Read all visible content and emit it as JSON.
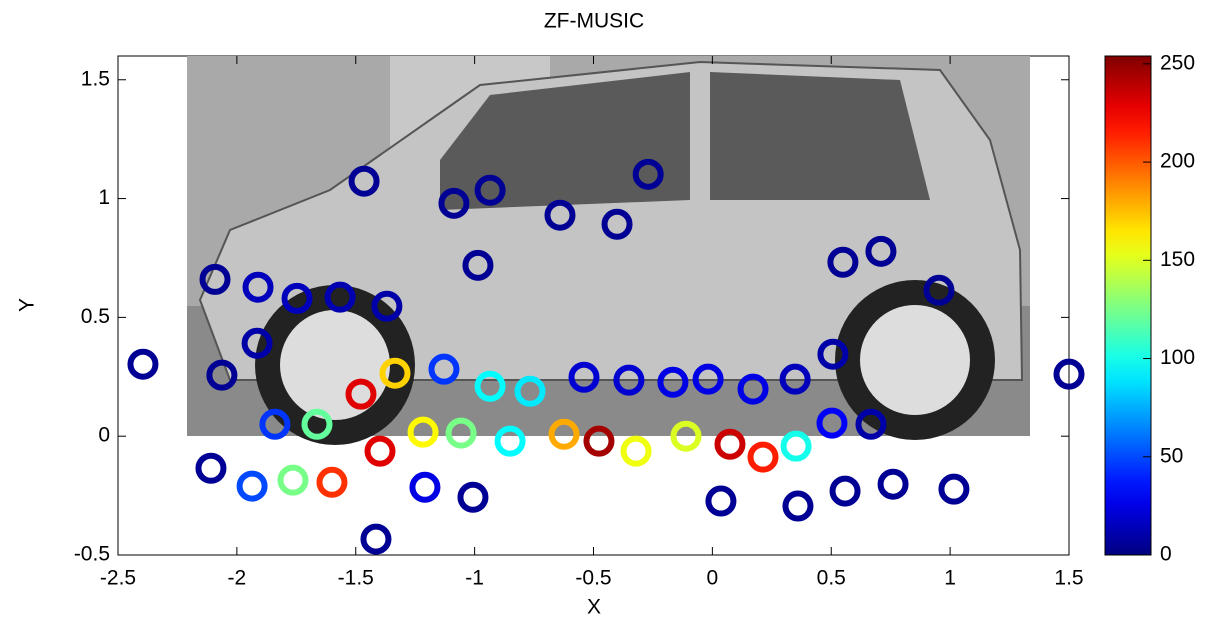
{
  "chart_data": {
    "type": "scatter",
    "title": "ZF-MUSIC",
    "x_label": "X",
    "y_label": "Y",
    "xlim": [
      -2.5,
      1.5
    ],
    "ylim": [
      -0.5,
      1.6
    ],
    "xticks": [
      -2.5,
      -2,
      -1.5,
      -1,
      -0.5,
      0,
      0.5,
      1,
      1.5
    ],
    "yticks": [
      -0.5,
      0,
      0.5,
      1,
      1.5
    ],
    "colormap": "jet",
    "clim": [
      0,
      254
    ],
    "cticks": [
      0,
      50,
      100,
      150,
      200,
      250
    ],
    "x": [
      -2.395,
      -2.109,
      -1.936,
      -1.764,
      -1.6,
      -1.415,
      -2.092,
      -1.911,
      -1.915,
      -2.063,
      -1.747,
      -1.566,
      -1.369,
      -1.465,
      -1.84,
      -1.663,
      -1.478,
      -1.335,
      -1.398,
      -1.217,
      -1.057,
      -1.209,
      -1.007,
      -1.129,
      -1.087,
      -0.935,
      -0.986,
      -0.935,
      -0.767,
      -0.851,
      -0.624,
      -0.477,
      -0.641,
      -0.401,
      -0.27,
      -0.54,
      -0.351,
      -0.166,
      -0.018,
      -0.321,
      -0.111,
      0.074,
      0.213,
      0.171,
      0.348,
      0.352,
      0.036,
      0.36,
      0.507,
      0.503,
      0.667,
      0.549,
      0.709,
      0.953,
      0.558,
      0.76,
      1.016,
      1.5
    ],
    "y": [
      0.303,
      -0.135,
      -0.21,
      -0.185,
      -0.194,
      -0.433,
      0.66,
      0.627,
      0.391,
      0.257,
      0.58,
      0.585,
      0.547,
      1.073,
      0.05,
      0.05,
      0.177,
      0.265,
      -0.063,
      0.017,
      0.013,
      -0.215,
      -0.257,
      0.282,
      0.98,
      1.035,
      0.719,
      0.21,
      0.189,
      -0.021,
      0.008,
      -0.021,
      0.93,
      0.892,
      1.102,
      0.248,
      0.236,
      0.227,
      0.24,
      -0.063,
      0.0,
      -0.034,
      -0.088,
      0.198,
      0.24,
      -0.042,
      -0.273,
      -0.294,
      0.345,
      0.055,
      0.05,
      0.732,
      0.778,
      0.614,
      -0.231,
      -0.202,
      -0.223,
      0.261
    ],
    "values": [
      5,
      5,
      50,
      125,
      210,
      5,
      5,
      15,
      10,
      5,
      15,
      12,
      10,
      5,
      45,
      120,
      230,
      170,
      230,
      160,
      125,
      25,
      5,
      45,
      5,
      5,
      5,
      95,
      90,
      95,
      180,
      245,
      5,
      5,
      5,
      20,
      20,
      25,
      25,
      155,
      150,
      235,
      215,
      25,
      15,
      100,
      5,
      5,
      10,
      30,
      10,
      5,
      5,
      5,
      5,
      5,
      5,
      5
    ]
  }
}
